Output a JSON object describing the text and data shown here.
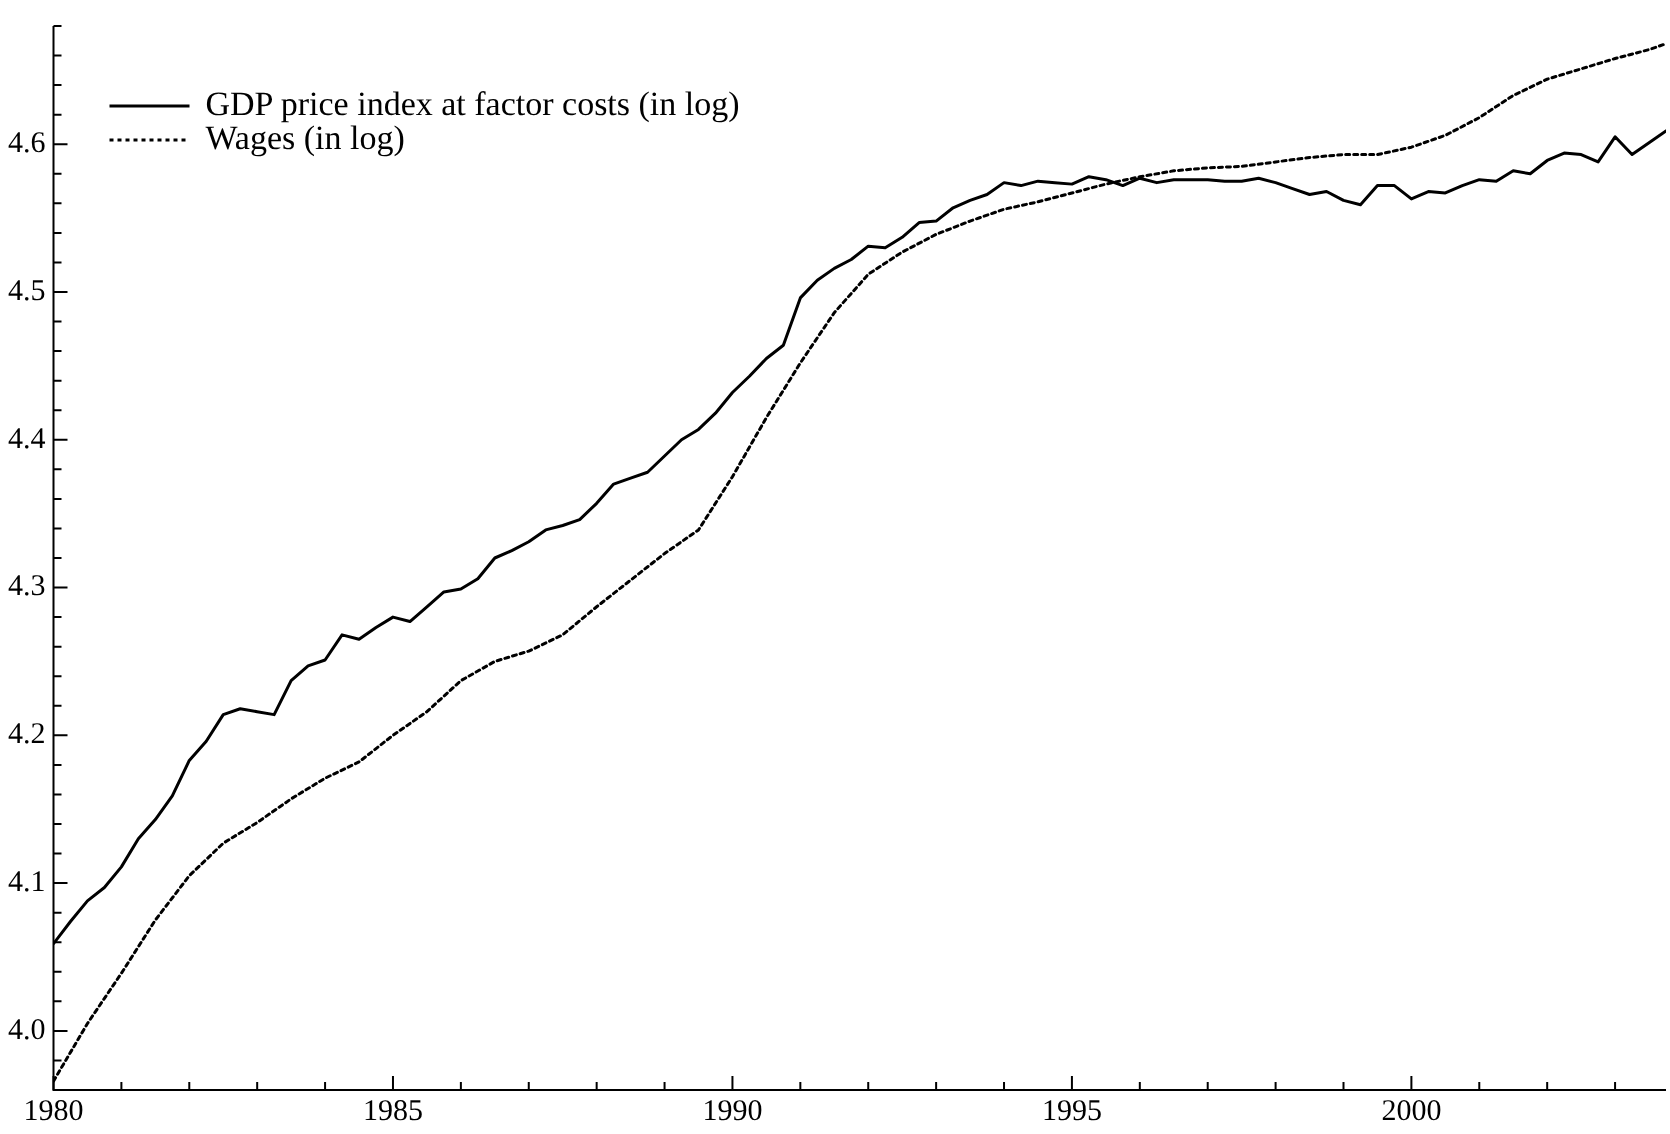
{
  "chart_data": {
    "type": "line",
    "legend": "top left",
    "grid": false,
    "marker": "none",
    "xlim": [
      1980,
      2003.75
    ],
    "xticks": [
      1980,
      {
        "value": 1981,
        "label": null
      },
      {
        "value": 1982,
        "label": null
      },
      {
        "value": 1983,
        "label": null
      },
      {
        "value": 1984,
        "label": null
      },
      1985,
      {
        "value": 1986,
        "label": null
      },
      {
        "value": 1987,
        "label": null
      },
      {
        "value": 1988,
        "label": null
      },
      {
        "value": 1989,
        "label": null
      },
      1990,
      {
        "value": 1991,
        "label": null
      },
      {
        "value": 1992,
        "label": null
      },
      {
        "value": 1993,
        "label": null
      },
      {
        "value": 1994,
        "label": null
      },
      1995,
      {
        "value": 1996,
        "label": null
      },
      {
        "value": 1997,
        "label": null
      },
      {
        "value": 1998,
        "label": null
      },
      {
        "value": 1999,
        "label": null
      },
      2000,
      {
        "value": 2001,
        "label": null
      },
      {
        "value": 2002,
        "label": null
      },
      {
        "value": 2003,
        "label": null
      }
    ],
    "ylim": [
      3.96,
      4.68
    ],
    "yticks": [
      {
        "value": 3.98,
        "label": null
      },
      {
        "value": 4,
        "label": "4.0"
      },
      {
        "value": 4.02,
        "label": null
      },
      {
        "value": 4.04,
        "label": null
      },
      {
        "value": 4.06,
        "label": null
      },
      {
        "value": 4.08,
        "label": null
      },
      {
        "value": 4.1,
        "label": "4.1"
      },
      {
        "value": 4.12,
        "label": null
      },
      {
        "value": 4.14,
        "label": null
      },
      {
        "value": 4.16,
        "label": null
      },
      {
        "value": 4.18,
        "label": null
      },
      {
        "value": 4.2,
        "label": "4.2"
      },
      {
        "value": 4.22,
        "label": null
      },
      {
        "value": 4.24,
        "label": null
      },
      {
        "value": 4.26,
        "label": null
      },
      {
        "value": 4.28,
        "label": null
      },
      {
        "value": 4.3,
        "label": "4.3"
      },
      {
        "value": 4.32,
        "label": null
      },
      {
        "value": 4.34,
        "label": null
      },
      {
        "value": 4.36,
        "label": null
      },
      {
        "value": 4.38,
        "label": null
      },
      {
        "value": 4.4,
        "label": "4.4"
      },
      {
        "value": 4.42,
        "label": null
      },
      {
        "value": 4.44,
        "label": null
      },
      {
        "value": 4.46,
        "label": null
      },
      {
        "value": 4.48,
        "label": null
      },
      {
        "value": 4.5,
        "label": "4.5"
      },
      {
        "value": 4.52,
        "label": null
      },
      {
        "value": 4.54,
        "label": null
      },
      {
        "value": 4.56,
        "label": null
      },
      {
        "value": 4.58,
        "label": null
      },
      {
        "value": 4.6,
        "label": "4.6"
      },
      {
        "value": 4.62,
        "label": null
      },
      {
        "value": 4.64,
        "label": null
      },
      {
        "value": 4.66,
        "label": null
      },
      {
        "value": 4.68,
        "label": null
      }
    ],
    "series": [
      {
        "name": "GDP price index at factor costs (in log)",
        "color": "#000000",
        "line_style": "solid",
        "x": [
          1980,
          1980.25,
          1980.5,
          1980.75,
          1981,
          1981.25,
          1981.5,
          1981.75,
          1982,
          1982.25,
          1982.5,
          1982.75,
          1983,
          1983.25,
          1983.5,
          1983.75,
          1984,
          1984.25,
          1984.5,
          1984.75,
          1985,
          1985.25,
          1985.5,
          1985.75,
          1986,
          1986.25,
          1986.5,
          1986.75,
          1987,
          1987.25,
          1987.5,
          1987.75,
          1988,
          1988.25,
          1988.5,
          1988.75,
          1989,
          1989.25,
          1989.5,
          1989.75,
          1990,
          1990.25,
          1990.5,
          1990.75,
          1991,
          1991.25,
          1991.5,
          1991.75,
          1992,
          1992.25,
          1992.5,
          1992.75,
          1993,
          1993.25,
          1993.5,
          1993.75,
          1994,
          1994.25,
          1994.5,
          1994.75,
          1995,
          1995.25,
          1995.5,
          1995.75,
          1996,
          1996.25,
          1996.5,
          1996.75,
          1997,
          1997.25,
          1997.5,
          1997.75,
          1998,
          1998.25,
          1998.5,
          1998.75,
          1999,
          1999.25,
          1999.5,
          1999.75,
          2000,
          2000.25,
          2000.5,
          2000.75,
          2001,
          2001.25,
          2001.5,
          2001.75,
          2002,
          2002.25,
          2002.5,
          2002.75,
          2003,
          2003.25,
          2003.5,
          2003.75
        ],
        "values": [
          4.059,
          4.074,
          4.088,
          4.097,
          4.111,
          4.13,
          4.143,
          4.159,
          4.183,
          4.196,
          4.214,
          4.218,
          4.216,
          4.214,
          4.237,
          4.247,
          4.251,
          4.268,
          4.265,
          4.273,
          4.28,
          4.277,
          4.287,
          4.297,
          4.299,
          4.306,
          4.32,
          4.325,
          4.331,
          4.339,
          4.342,
          4.346,
          4.357,
          4.37,
          4.374,
          4.378,
          4.389,
          4.4,
          4.407,
          4.418,
          4.432,
          4.443,
          4.455,
          4.464,
          4.496,
          4.508,
          4.516,
          4.522,
          4.531,
          4.53,
          4.537,
          4.547,
          4.548,
          4.557,
          4.562,
          4.566,
          4.574,
          4.572,
          4.575,
          4.574,
          4.573,
          4.578,
          4.576,
          4.572,
          4.577,
          4.574,
          4.576,
          4.576,
          4.576,
          4.575,
          4.575,
          4.577,
          4.574,
          4.57,
          4.566,
          4.568,
          4.562,
          4.559,
          4.572,
          4.572,
          4.563,
          4.568,
          4.567,
          4.572,
          4.576,
          4.575,
          4.582,
          4.58,
          4.589,
          4.594,
          4.593,
          4.588,
          4.605,
          4.593,
          4.601,
          4.609
        ]
      },
      {
        "name": "Wages (in log)",
        "color": "#000000",
        "line_style": "dotted",
        "x": [
          1980,
          1980.5,
          1981,
          1981.5,
          1982,
          1982.5,
          1983,
          1983.5,
          1984,
          1984.5,
          1985,
          1985.5,
          1986,
          1986.5,
          1987,
          1987.5,
          1988,
          1988.5,
          1989,
          1989.5,
          1990,
          1990.5,
          1991,
          1991.5,
          1992,
          1992.5,
          1993,
          1993.5,
          1994,
          1994.5,
          1995,
          1995.5,
          1996,
          1996.5,
          1997,
          1997.5,
          1998,
          1998.5,
          1999,
          1999.5,
          2000,
          2000.5,
          2001,
          2001.5,
          2002,
          2002.5,
          2003,
          2003.5,
          2003.75
        ],
        "values": [
          3.966,
          4.005,
          4.039,
          4.075,
          4.105,
          4.127,
          4.141,
          4.157,
          4.171,
          4.182,
          4.2,
          4.216,
          4.237,
          4.25,
          4.257,
          4.268,
          4.287,
          4.305,
          4.323,
          4.339,
          4.375,
          4.415,
          4.452,
          4.486,
          4.512,
          4.527,
          4.539,
          4.548,
          4.556,
          4.561,
          4.567,
          4.573,
          4.578,
          4.582,
          4.584,
          4.585,
          4.588,
          4.591,
          4.593,
          4.593,
          4.598,
          4.606,
          4.618,
          4.633,
          4.644,
          4.651,
          4.658,
          4.664,
          4.668
        ]
      }
    ]
  }
}
